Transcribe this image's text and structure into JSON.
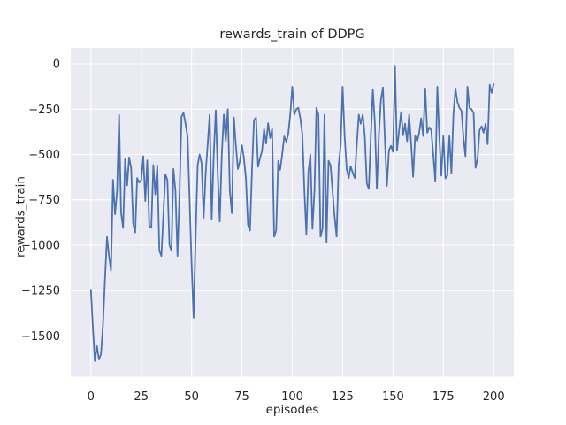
{
  "figure": {
    "background": "#ffffff"
  },
  "chart_data": {
    "type": "line",
    "title": "rewards_train of DDPG",
    "xlabel": "episodes",
    "ylabel": "rewards_train",
    "plot_bg_color": "#eaeaf2",
    "grid_color": "#ffffff",
    "line_color": "#4c72b0",
    "text_color": "#262626",
    "grid": true,
    "legend": "none",
    "xlim": [
      -10,
      210
    ],
    "ylim": [
      -1725,
      88
    ],
    "x_start": 0,
    "x_step": 1,
    "xticks": {
      "values": [
        0,
        25,
        50,
        75,
        100,
        125,
        150,
        175,
        200
      ],
      "labels": [
        "0",
        "25",
        "50",
        "75",
        "100",
        "125",
        "150",
        "175",
        "200"
      ]
    },
    "yticks": {
      "values": [
        0,
        -250,
        -500,
        -750,
        -1000,
        -1250,
        -1500
      ],
      "labels": [
        "0",
        "−250",
        "−500",
        "−750",
        "−1000",
        "−1250",
        "−1500"
      ]
    },
    "series": [
      {
        "name": "rewards_train",
        "values": [
          -1245,
          -1450,
          -1639,
          -1556,
          -1630,
          -1600,
          -1445,
          -1190,
          -955,
          -1060,
          -1140,
          -640,
          -830,
          -700,
          -282,
          -820,
          -905,
          -525,
          -670,
          -516,
          -574,
          -880,
          -930,
          -630,
          -655,
          -640,
          -510,
          -757,
          -533,
          -896,
          -904,
          -558,
          -720,
          -560,
          -1030,
          -1060,
          -830,
          -610,
          -640,
          -1000,
          -1030,
          -580,
          -700,
          -1060,
          -720,
          -290,
          -270,
          -330,
          -400,
          -750,
          -1095,
          -1400,
          -960,
          -560,
          -500,
          -550,
          -850,
          -600,
          -440,
          -280,
          -856,
          -500,
          -256,
          -600,
          -870,
          -500,
          -280,
          -426,
          -250,
          -700,
          -824,
          -296,
          -450,
          -580,
          -536,
          -450,
          -520,
          -634,
          -888,
          -920,
          -580,
          -312,
          -296,
          -568,
          -520,
          -480,
          -360,
          -440,
          -328,
          -410,
          -360,
          -953,
          -920,
          -536,
          -585,
          -500,
          -400,
          -430,
          -390,
          -280,
          -126,
          -280,
          -250,
          -243,
          -300,
          -390,
          -700,
          -939,
          -598,
          -500,
          -910,
          -700,
          -243,
          -280,
          -953,
          -910,
          -280,
          -985,
          -535,
          -560,
          -700,
          -840,
          -953,
          -560,
          -450,
          -126,
          -400,
          -580,
          -630,
          -565,
          -600,
          -630,
          -450,
          -280,
          -330,
          -280,
          -400,
          -660,
          -690,
          -400,
          -142,
          -330,
          -690,
          -394,
          -200,
          -130,
          -430,
          -674,
          -477,
          -452,
          -485,
          -10,
          -477,
          -370,
          -267,
          -394,
          -330,
          -427,
          -280,
          -440,
          -623,
          -398,
          -427,
          -380,
          -300,
          -398,
          -136,
          -380,
          -350,
          -365,
          -500,
          -647,
          -126,
          -398,
          -617,
          -398,
          -632,
          -617,
          -398,
          -602,
          -280,
          -136,
          -209,
          -243,
          -258,
          -413,
          -510,
          -126,
          -245,
          -250,
          -270,
          -574,
          -525,
          -365,
          -345,
          -380,
          -330,
          -443,
          -115,
          -160,
          -112
        ]
      }
    ]
  }
}
